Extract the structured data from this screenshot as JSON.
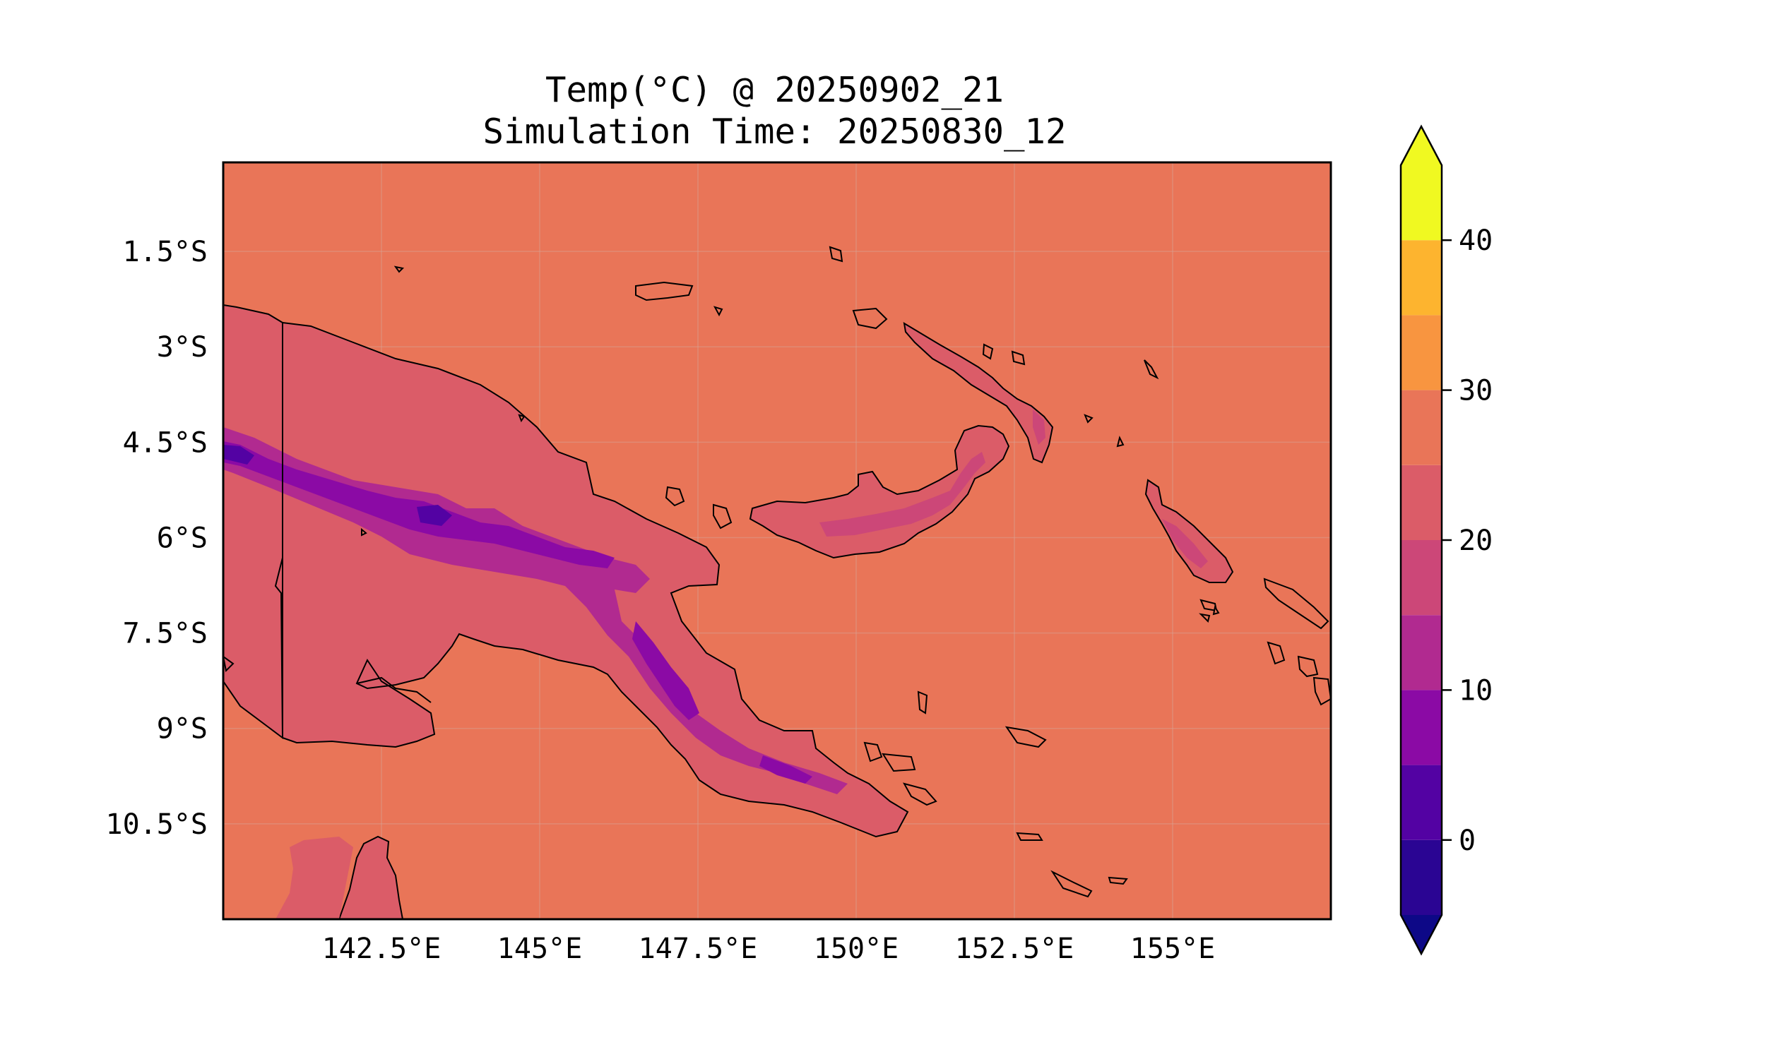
{
  "title": {
    "line1": "Temp(°C) @ 20250902_21",
    "line2": "Simulation Time: 20250830_12"
  },
  "map": {
    "extent": {
      "lon_min": 140.0,
      "lon_max": 157.5,
      "lat_min": -12.0,
      "lat_max": -0.1
    },
    "x_ticks": [
      {
        "value": 142.5,
        "label": "142.5°E"
      },
      {
        "value": 145.0,
        "label": "145°E"
      },
      {
        "value": 147.5,
        "label": "147.5°E"
      },
      {
        "value": 150.0,
        "label": "150°E"
      },
      {
        "value": 152.5,
        "label": "152.5°E"
      },
      {
        "value": 155.0,
        "label": "155°E"
      }
    ],
    "y_ticks": [
      {
        "value": -1.5,
        "label": "1.5°S"
      },
      {
        "value": -3.0,
        "label": "3°S"
      },
      {
        "value": -4.5,
        "label": "4.5°S"
      },
      {
        "value": -6.0,
        "label": "6°S"
      },
      {
        "value": -7.5,
        "label": "7.5°S"
      },
      {
        "value": -9.0,
        "label": "9°S"
      },
      {
        "value": -10.5,
        "label": "10.5°S"
      }
    ],
    "gridlines": true,
    "ocean_color": "#e97558"
  },
  "colorbar": {
    "levels": [
      -5,
      0,
      5,
      10,
      15,
      20,
      25,
      30,
      35,
      40,
      45
    ],
    "colors": [
      "#2a0593",
      "#5302a3",
      "#8b0aa5",
      "#b12a90",
      "#cc4778",
      "#db5c68",
      "#e97558",
      "#f89540",
      "#fdb42f",
      "#f0f921"
    ],
    "under_color": "#0d0887",
    "over_color": "#f0f921",
    "extend": "both",
    "tick_values": [
      0,
      10,
      20,
      30,
      40
    ],
    "tick_labels": [
      "0",
      "10",
      "20",
      "30",
      "40"
    ]
  }
}
